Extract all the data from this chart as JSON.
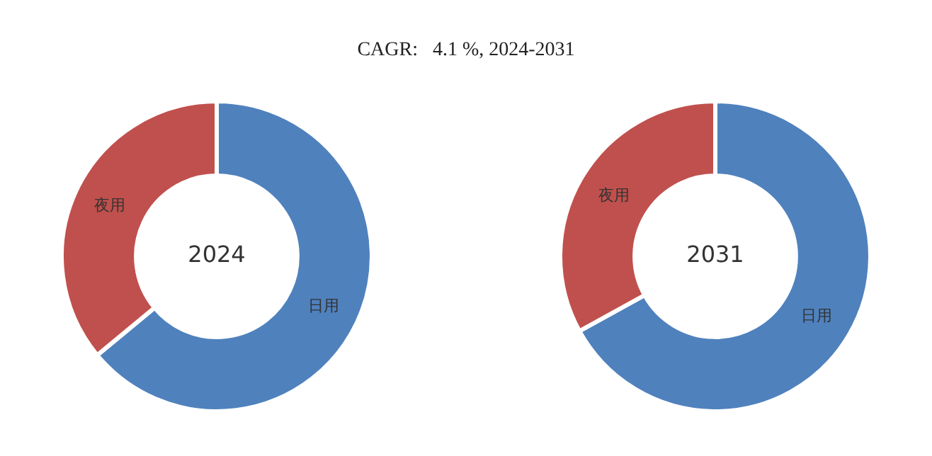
{
  "chart_data": [
    {
      "type": "donut",
      "title": "CAGR:   4.1 %, 2024-2031",
      "annotations": [
        "2024"
      ],
      "categories": [
        "日用",
        "夜用"
      ],
      "values": [
        64,
        36
      ],
      "colors": [
        "#4f81bd",
        "#c0504d"
      ]
    },
    {
      "type": "donut",
      "annotations": [
        "2031"
      ],
      "categories": [
        "日用",
        "夜用"
      ],
      "values": [
        67,
        33
      ],
      "colors": [
        "#4f81bd",
        "#c0504d"
      ]
    }
  ]
}
